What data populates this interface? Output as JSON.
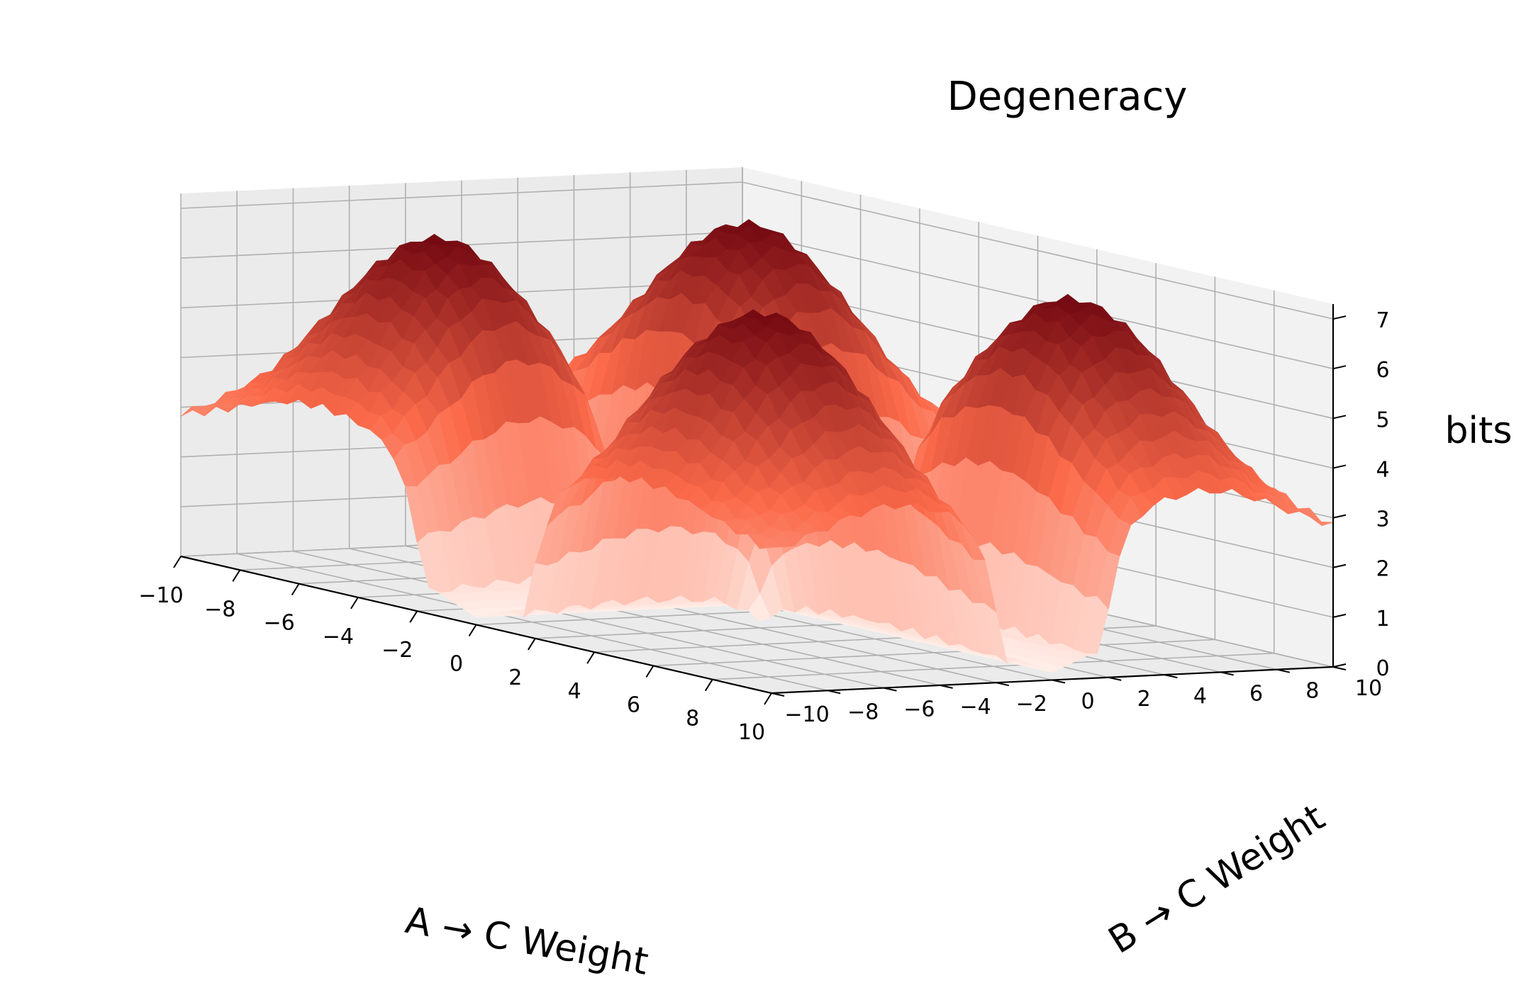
{
  "chart_data": {
    "type": "surface",
    "title": "Degeneracy",
    "xlabel": "A → C Weight",
    "ylabel": "B → C Weight",
    "zlabel": "bits",
    "x_ticks": [
      "−10",
      "−8",
      "−6",
      "−4",
      "−2",
      "0",
      "2",
      "4",
      "6",
      "8",
      "10"
    ],
    "y_ticks": [
      "−10",
      "−8",
      "−6",
      "−4",
      "−2",
      "0",
      "2",
      "4",
      "6",
      "8",
      "10"
    ],
    "z_ticks": [
      "0",
      "1",
      "2",
      "3",
      "4",
      "5",
      "6",
      "7"
    ],
    "xlim": [
      -10,
      10
    ],
    "ylim": [
      -10,
      10
    ],
    "zlim": [
      0,
      7.3
    ],
    "grid": true,
    "colormap": "Reds",
    "surface_description_values": {
      "peak_height_bits": 7.0,
      "plateau_height_bits": 5.0,
      "near_zero_height_bits": 0.3,
      "lobes_at": [
        [
          -5,
          -5
        ],
        [
          -5,
          5
        ],
        [
          5,
          -5
        ],
        [
          5,
          5
        ]
      ]
    }
  },
  "colors": {
    "pane": "#f2f2f2",
    "pane_dark": "#ebebeb",
    "grid": "#b0b0b0",
    "axis": "#000000",
    "surface_low": "#fff5f0",
    "surface_mid": "#fb6a4a",
    "surface_high": "#67000d"
  }
}
